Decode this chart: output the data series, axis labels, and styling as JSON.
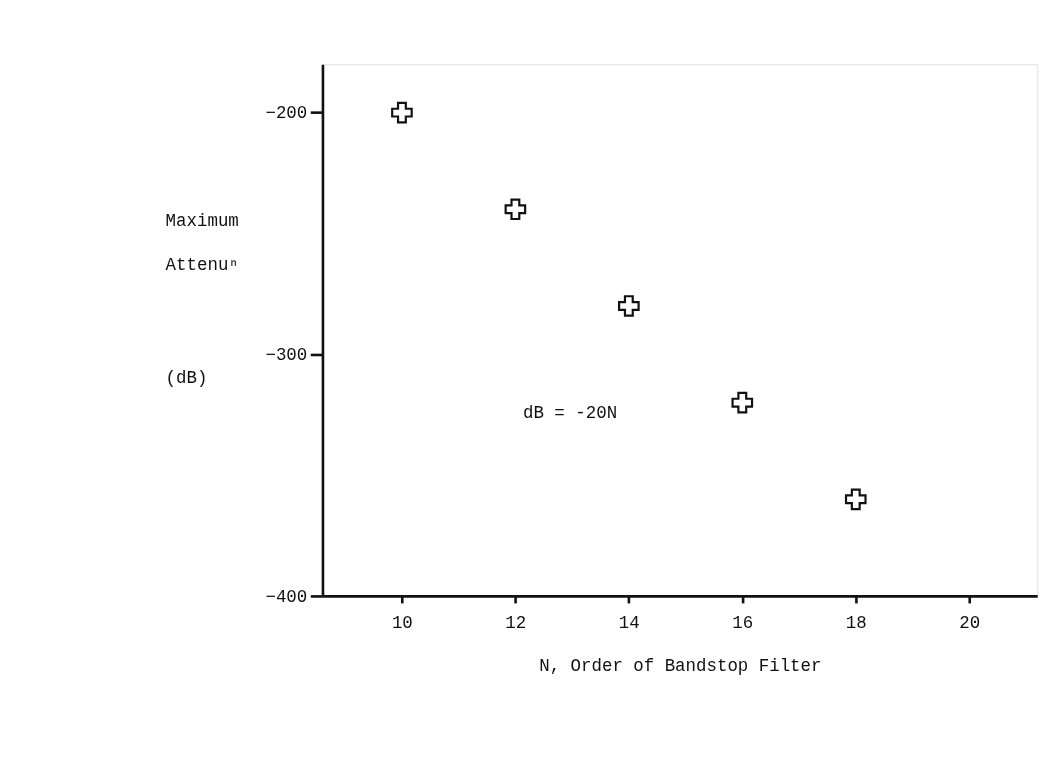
{
  "chart_data": {
    "type": "scatter",
    "xlabel": "N, Order of Bandstop Filter",
    "ylabel": "Maximum Attenuⁿ (dB)",
    "x": [
      10,
      12,
      14,
      16,
      18
    ],
    "series": [
      {
        "color": "#111111",
        "values": [
          -200,
          -240,
          -280,
          -320,
          -360
        ]
      }
    ],
    "xlim": [
      8.6,
      21.2
    ],
    "xticks": [
      10,
      12,
      14,
      16,
      18,
      20
    ],
    "ylim": [
      -400,
      -180
    ],
    "yticks": [
      -200,
      -300,
      -400
    ],
    "annotations": [
      "dB = -20N"
    ],
    "marker": "cross",
    "grid": false
  }
}
